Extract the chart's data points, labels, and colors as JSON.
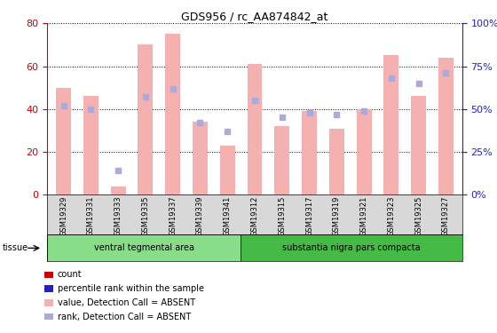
{
  "title": "GDS956 / rc_AA874842_at",
  "samples": [
    "GSM19329",
    "GSM19331",
    "GSM19333",
    "GSM19335",
    "GSM19337",
    "GSM19339",
    "GSM19341",
    "GSM19312",
    "GSM19315",
    "GSM19317",
    "GSM19319",
    "GSM19321",
    "GSM19323",
    "GSM19325",
    "GSM19327"
  ],
  "bar_values": [
    50,
    46,
    4,
    70,
    75,
    34,
    23,
    61,
    32,
    39,
    31,
    40,
    65,
    46,
    64
  ],
  "rank_values_pct": [
    52,
    50,
    14,
    57,
    62,
    42,
    37,
    55,
    45,
    48,
    47,
    49,
    68,
    65,
    71
  ],
  "bar_color_absent": "#f5b0b0",
  "rank_color_absent": "#aaaadd",
  "ylim_left": [
    0,
    80
  ],
  "ylim_right": [
    0,
    100
  ],
  "yticks_left": [
    0,
    20,
    40,
    60,
    80
  ],
  "ytick_labels_left": [
    "0",
    "20",
    "40",
    "60",
    "80"
  ],
  "yticks_right": [
    0,
    25,
    50,
    75,
    100
  ],
  "ytick_labels_right": [
    "0%",
    "25%",
    "50%",
    "75%",
    "100%"
  ],
  "tissue_groups": [
    {
      "label": "ventral tegmental area",
      "start": 0,
      "end": 7
    },
    {
      "label": "substantia nigra pars compacta",
      "start": 7,
      "end": 15
    }
  ],
  "tissue_colors": [
    "#88dd88",
    "#44bb44"
  ],
  "tissue_label": "tissue",
  "left_axis_color": "#cc0000",
  "right_axis_color": "#2222bb",
  "legend_colors": [
    "#cc0000",
    "#2222bb",
    "#f5b0b0",
    "#aaaadd"
  ],
  "legend_labels": [
    "count",
    "percentile rank within the sample",
    "value, Detection Call = ABSENT",
    "rank, Detection Call = ABSENT"
  ]
}
